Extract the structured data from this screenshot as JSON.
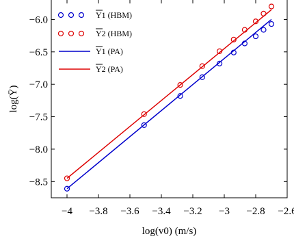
{
  "chart_data": {
    "type": "scatter",
    "xlabel": "log(v0) (m/s)",
    "ylabel": "log(Ȳ)",
    "xlim": [
      -4.1,
      -2.6
    ],
    "ylim": [
      -8.75,
      -5.7
    ],
    "x_ticks": [
      -4,
      -3.8,
      -3.6,
      -3.4,
      -3.2,
      -3,
      -2.8,
      -2.6
    ],
    "x_tick_labels": [
      "−4",
      "−3.8",
      "−3.6",
      "−3.4",
      "−3.2",
      "−3",
      "−2.8",
      "−2.6"
    ],
    "y_ticks": [
      -8.5,
      -8.0,
      -7.5,
      -7.0,
      -6.5,
      -6.0
    ],
    "y_tick_labels": [
      "−8.5",
      "−8.0",
      "−7.5",
      "−7.0",
      "−6.5",
      "−6.0"
    ],
    "grid": false,
    "legend_position": "top-left",
    "series": [
      {
        "name": "Y1 (HBM)",
        "kind": "markers",
        "marker": "circle",
        "color": "#0000cc",
        "x": [
          -4.0,
          -3.51,
          -3.28,
          -3.14,
          -3.03,
          -2.94,
          -2.87,
          -2.8,
          -2.75,
          -2.7
        ],
        "y": [
          -8.61,
          -7.63,
          -7.18,
          -6.89,
          -6.68,
          -6.51,
          -6.37,
          -6.26,
          -6.16,
          -6.07
        ]
      },
      {
        "name": "Y2 (HBM)",
        "kind": "markers",
        "marker": "circle",
        "color": "#dd0000",
        "x": [
          -4.0,
          -3.51,
          -3.28,
          -3.14,
          -3.03,
          -2.94,
          -2.87,
          -2.8,
          -2.75,
          -2.7
        ],
        "y": [
          -8.45,
          -7.46,
          -7.01,
          -6.72,
          -6.49,
          -6.31,
          -6.16,
          -6.03,
          -5.91,
          -5.8
        ]
      },
      {
        "name": "Y1 (PA)",
        "kind": "line",
        "color": "#0000cc",
        "x": [
          -4.0,
          -2.7
        ],
        "y": [
          -8.61,
          -6.0
        ]
      },
      {
        "name": "Y2 (PA)",
        "kind": "line",
        "color": "#dd0000",
        "x": [
          -4.0,
          -2.7
        ],
        "y": [
          -8.45,
          -5.85
        ]
      }
    ],
    "legend": [
      {
        "label": "Y1 (HBM)",
        "bar_text": "Y",
        "rest_text": "1 (HBM)"
      },
      {
        "label": "Y2 (HBM)",
        "bar_text": "Y",
        "rest_text": "2 (HBM)"
      },
      {
        "label": "Y1 (PA)",
        "bar_text": "Y",
        "rest_text": "1 (PA)"
      },
      {
        "label": "Y2 (PA)",
        "bar_text": "Y",
        "rest_text": "2 (PA)"
      }
    ]
  }
}
